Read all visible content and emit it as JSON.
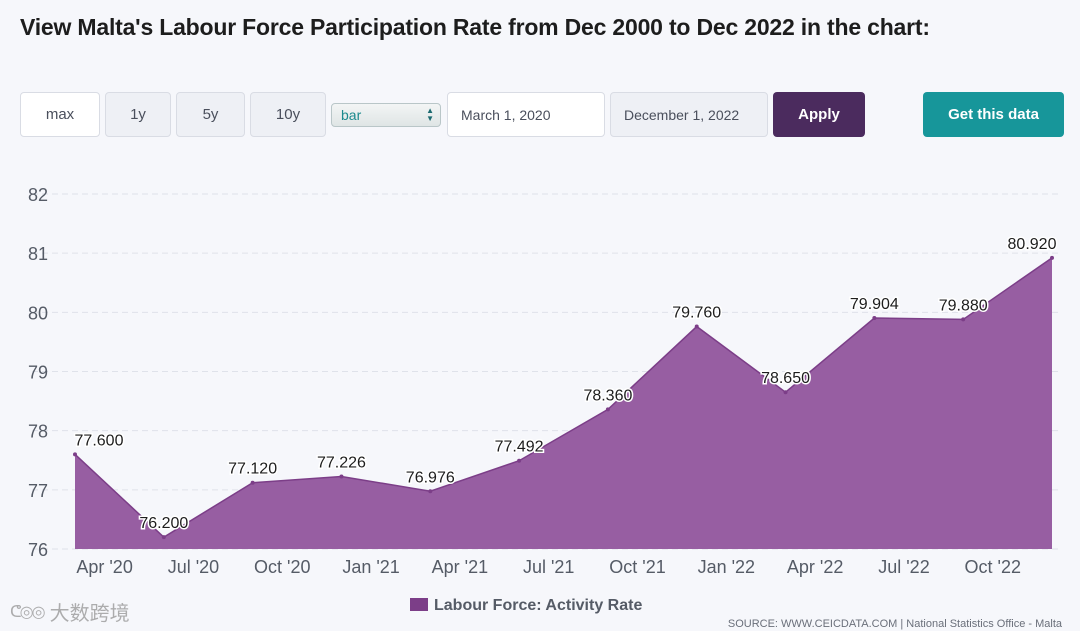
{
  "page": {
    "title": "View Malta's Labour Force Participation Rate from Dec 2000 to Dec 2022 in the chart:",
    "watermark": "大数跨境",
    "watermark_logo": "ᕦ◎◎"
  },
  "toolbar": {
    "ranges": [
      {
        "label": "max",
        "active": true
      },
      {
        "label": "1y",
        "active": false
      },
      {
        "label": "5y",
        "active": false
      },
      {
        "label": "10y",
        "active": false
      }
    ],
    "chart_type_select": "bar",
    "start_date": "March 1, 2020",
    "end_date": "December 1, 2022",
    "apply_label": "Apply",
    "get_data_label": "Get this data"
  },
  "colors": {
    "area_fill": "#975ea2",
    "area_stroke": "#7c3e88",
    "legend_swatch": "#7c3e88",
    "apply_bg": "#4b2b5e",
    "get_data_bg": "#17969a"
  },
  "chart_data": {
    "type": "area",
    "title": "",
    "xlabel": "",
    "ylabel": "",
    "ylim": [
      76,
      82
    ],
    "yticks": [
      "82",
      "81",
      "80",
      "79",
      "78",
      "77",
      "76"
    ],
    "grid": true,
    "points": [
      {
        "date": "2020-03",
        "value": 77.6,
        "label": "77.600"
      },
      {
        "date": "2020-06",
        "value": 76.2,
        "label": "76.200"
      },
      {
        "date": "2020-09",
        "value": 77.12,
        "label": "77.120"
      },
      {
        "date": "2020-12",
        "value": 77.226,
        "label": "77.226"
      },
      {
        "date": "2021-03",
        "value": 76.976,
        "label": "76.976"
      },
      {
        "date": "2021-06",
        "value": 77.492,
        "label": "77.492"
      },
      {
        "date": "2021-09",
        "value": 78.36,
        "label": "78.360"
      },
      {
        "date": "2021-12",
        "value": 79.76,
        "label": "79.760"
      },
      {
        "date": "2022-03",
        "value": 78.65,
        "label": "78.650"
      },
      {
        "date": "2022-06",
        "value": 79.904,
        "label": "79.904"
      },
      {
        "date": "2022-09",
        "value": 79.88,
        "label": "79.880"
      },
      {
        "date": "2022-12",
        "value": 80.92,
        "label": "80.920"
      }
    ],
    "xticks": [
      {
        "date": "2020-04",
        "label": "Apr '20"
      },
      {
        "date": "2020-07",
        "label": "Jul '20"
      },
      {
        "date": "2020-10",
        "label": "Oct '20"
      },
      {
        "date": "2021-01",
        "label": "Jan '21"
      },
      {
        "date": "2021-04",
        "label": "Apr '21"
      },
      {
        "date": "2021-07",
        "label": "Jul '21"
      },
      {
        "date": "2021-10",
        "label": "Oct '21"
      },
      {
        "date": "2022-01",
        "label": "Jan '22"
      },
      {
        "date": "2022-04",
        "label": "Apr '22"
      },
      {
        "date": "2022-07",
        "label": "Jul '22"
      },
      {
        "date": "2022-10",
        "label": "Oct '22"
      }
    ],
    "legend": "Labour Force: Activity Rate",
    "legend_position": "bottom-center",
    "source": "SOURCE: WWW.CEICDATA.COM | National Statistics Office - Malta"
  }
}
